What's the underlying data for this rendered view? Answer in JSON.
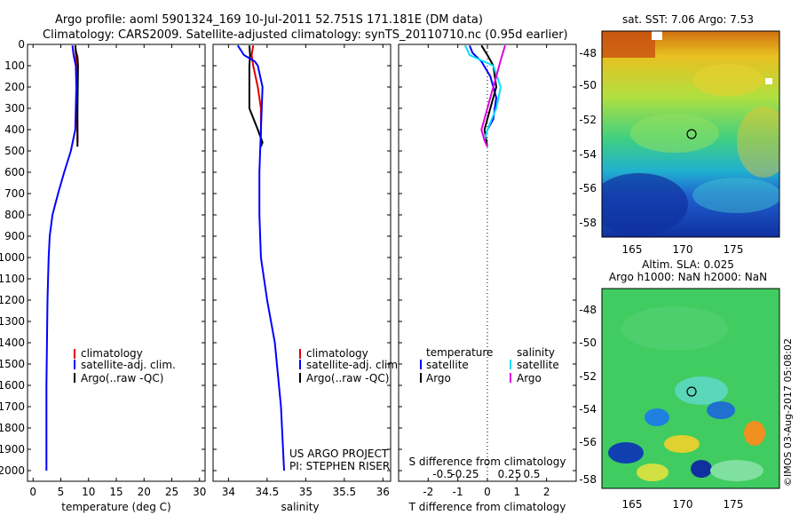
{
  "header": {
    "title_line1": "Argo profile: aoml 5901324_169 10-Jul-2011 52.751S 171.181E (DM data)",
    "title_line2": "Climatology: CARS2009. Satellite-adjusted climatology: synTS_20110710.nc (0.95d earlier)"
  },
  "colors": {
    "climatology": "#e00000",
    "satellite": "#0000ff",
    "argo": "#000000",
    "satellite_s": "#00e0ff",
    "argo_s": "#e000e0"
  },
  "legend": {
    "climatology": "climatology",
    "satellite_adj": "satellite-adj. clim.",
    "argo_raw": "Argo(..raw -QC)",
    "temperature": "temperature",
    "salinity": "salinity",
    "satellite": "satellite",
    "argo": "Argo"
  },
  "credits": {
    "line1": "US ARGO PROJECT",
    "line2": "PI: STEPHEN RISER",
    "timestamp": "©IMOS 03-Aug-2017 05:08:02"
  },
  "maps": {
    "sst_title": "sat. SST: 7.06 Argo: 7.53",
    "sla_title1": "Altim. SLA: 0.025",
    "sla_title2": "Argo h1000: NaN h2000: NaN",
    "lat_ticks": [
      "-48",
      "-50",
      "-52",
      "-54",
      "-56",
      "-58"
    ],
    "lon_ticks": [
      "165",
      "170",
      "175"
    ]
  },
  "chart_data": [
    {
      "type": "line",
      "name": "temperature",
      "xlabel": "temperature (deg C)",
      "xlim": [
        -1,
        31
      ],
      "ylim": [
        2050,
        0
      ],
      "xticks": [
        0,
        5,
        10,
        15,
        20,
        25,
        30
      ],
      "yticks": [
        0,
        100,
        200,
        300,
        400,
        500,
        600,
        700,
        800,
        900,
        1000,
        1100,
        1200,
        1300,
        1400,
        1500,
        1600,
        1700,
        1800,
        1900,
        2000
      ],
      "series": [
        {
          "name": "climatology",
          "color": "climatology",
          "x": [
            7.6,
            7.7,
            7.8,
            7.9,
            8.0
          ],
          "y": [
            5,
            50,
            100,
            200,
            460
          ]
        },
        {
          "name": "Argo(..raw -QC)",
          "color": "argo",
          "x": [
            7.6,
            7.7,
            8.0,
            8.1,
            8.0,
            8.0
          ],
          "y": [
            5,
            30,
            60,
            100,
            300,
            480
          ]
        },
        {
          "name": "satellite-adj. clim.",
          "color": "satellite",
          "x": [
            7.1,
            7.3,
            7.7,
            7.8,
            7.6,
            6.8,
            5.6,
            4.5,
            3.5,
            3.0,
            2.8,
            2.6,
            2.5,
            2.4,
            2.4
          ],
          "y": [
            5,
            50,
            100,
            200,
            400,
            500,
            600,
            700,
            800,
            900,
            1000,
            1200,
            1400,
            1600,
            2000
          ]
        }
      ]
    },
    {
      "type": "line",
      "name": "salinity",
      "xlabel": "salinity",
      "xlim": [
        33.8,
        36.1
      ],
      "ylim": [
        2050,
        0
      ],
      "xticks": [
        34,
        34.5,
        35,
        35.5,
        36
      ],
      "xticklabels": [
        "34",
        "34.5",
        "35",
        "35.5",
        "36"
      ],
      "series": [
        {
          "name": "climatology",
          "color": "climatology",
          "x": [
            34.32,
            34.3,
            34.32,
            34.38,
            34.42,
            34.42
          ],
          "y": [
            5,
            50,
            100,
            200,
            300,
            460
          ]
        },
        {
          "name": "Argo(..raw -QC)",
          "color": "argo",
          "x": [
            34.27,
            34.28,
            34.27,
            34.27,
            34.38,
            34.44,
            34.42
          ],
          "y": [
            5,
            50,
            100,
            300,
            400,
            460,
            480
          ]
        },
        {
          "name": "satellite-adj. clim.",
          "color": "satellite",
          "x": [
            34.12,
            34.2,
            34.34,
            34.38,
            34.44,
            34.42,
            34.4,
            34.4,
            34.42,
            34.5,
            34.6,
            34.68,
            34.72
          ],
          "y": [
            5,
            50,
            80,
            100,
            200,
            400,
            600,
            800,
            1000,
            1200,
            1400,
            1700,
            2000
          ]
        }
      ]
    },
    {
      "type": "line",
      "name": "difference from climatology",
      "xlabel_top": "S difference from climatology",
      "xlabel": "T difference from climatology",
      "xlim": [
        -3,
        3
      ],
      "ylim": [
        2050,
        0
      ],
      "xticks": [
        -2,
        -1,
        0,
        1,
        2
      ],
      "xticklabels": [
        "-2",
        "-1",
        "0",
        "1",
        "2"
      ],
      "xticks_top": [
        -1.5,
        -0.75,
        0.75,
        1.5
      ],
      "xticklabels_top": [
        "-0.5",
        "-0.25",
        "0.25",
        "0.5"
      ],
      "series": [
        {
          "name": "temperature satellite",
          "color": "satellite",
          "x": [
            -0.6,
            -0.5,
            -0.2,
            0.1,
            0.3,
            0.2,
            0.0,
            -0.1
          ],
          "y": [
            5,
            40,
            80,
            150,
            250,
            350,
            400,
            450
          ]
        },
        {
          "name": "temperature Argo",
          "color": "argo",
          "x": [
            -0.2,
            0.0,
            0.2,
            0.3,
            0.1,
            -0.1,
            0.0
          ],
          "y": [
            5,
            50,
            100,
            200,
            300,
            400,
            480
          ]
        },
        {
          "name": "salinity satellite",
          "color": "satellite_s",
          "x": [
            -0.75,
            -0.6,
            0.2,
            0.45,
            0.3,
            0.0,
            -0.1,
            0.0
          ],
          "y": [
            5,
            50,
            100,
            200,
            300,
            400,
            450,
            480
          ]
        },
        {
          "name": "salinity Argo",
          "color": "argo_s",
          "x": [
            0.6,
            0.5,
            0.4,
            0.3,
            0.1,
            -0.1,
            -0.2,
            -0.1,
            0.0
          ],
          "y": [
            5,
            50,
            100,
            150,
            250,
            350,
            400,
            450,
            480
          ]
        }
      ]
    }
  ]
}
